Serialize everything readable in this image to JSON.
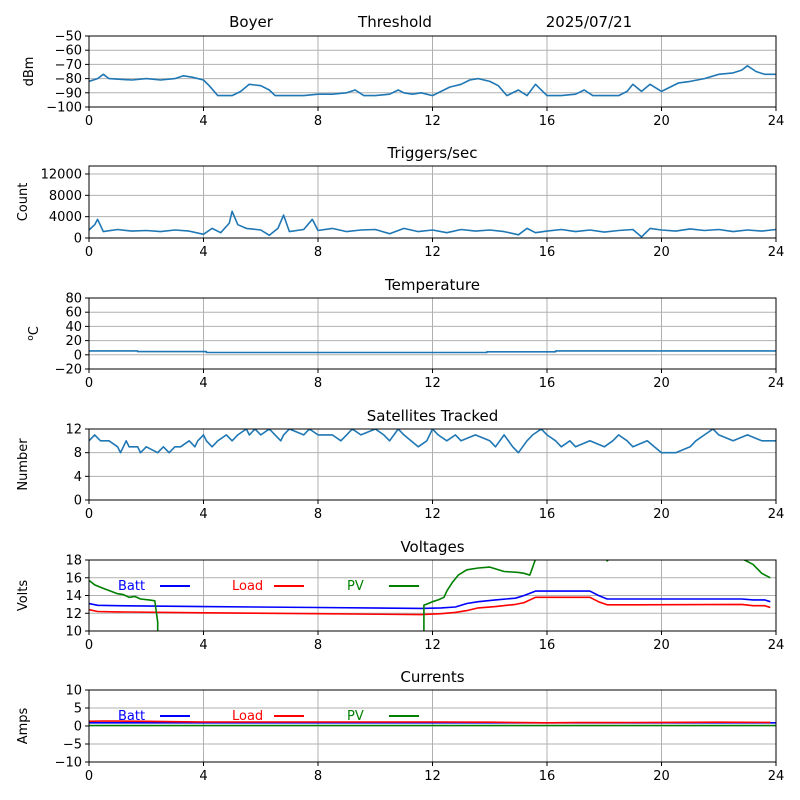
{
  "header": {
    "station": "Boyer",
    "label": "Threshold",
    "date": "2025/07/21"
  },
  "colors": {
    "series_default": "#1f77b4",
    "grid": "#b0b0b0",
    "batt": "#0000ff",
    "load": "#ff0000",
    "pv": "#008000"
  },
  "chart_data": [
    {
      "id": "threshold",
      "type": "line",
      "title": "",
      "ylabel": "dBm",
      "xlim": [
        0,
        24
      ],
      "ylim": [
        -100,
        -50
      ],
      "xticks": [
        0,
        4,
        8,
        12,
        16,
        20,
        24
      ],
      "yticks": [
        -100,
        -90,
        -80,
        -70,
        -60,
        -50
      ],
      "ytick_labels": [
        "−100",
        "−90",
        "−80",
        "−70",
        "−60",
        "−50"
      ],
      "grid": true,
      "series": [
        {
          "color": "#1f77b4",
          "x": [
            0,
            0.3,
            0.5,
            0.7,
            1.5,
            2.0,
            2.5,
            3.0,
            3.3,
            3.6,
            4.0,
            4.2,
            4.5,
            5.0,
            5.3,
            5.6,
            6.0,
            6.3,
            6.5,
            7.0,
            7.5,
            8.0,
            8.5,
            9.0,
            9.3,
            9.6,
            10.0,
            10.5,
            10.8,
            11.0,
            11.3,
            11.6,
            12.0,
            12.3,
            12.6,
            13.0,
            13.3,
            13.6,
            14.0,
            14.3,
            14.6,
            15.0,
            15.3,
            15.6,
            16.0,
            16.5,
            17.0,
            17.3,
            17.6,
            18.0,
            18.5,
            18.8,
            19.0,
            19.3,
            19.6,
            20.0,
            20.3,
            20.6,
            21.0,
            21.5,
            22.0,
            22.5,
            22.8,
            23.0,
            23.3,
            23.6,
            24.0
          ],
          "y": [
            -82,
            -80,
            -77,
            -80,
            -81,
            -80,
            -81,
            -80,
            -78,
            -79,
            -81,
            -85,
            -92,
            -92,
            -89,
            -84,
            -85,
            -88,
            -92,
            -92,
            -92,
            -91,
            -91,
            -90,
            -88,
            -92,
            -92,
            -91,
            -88,
            -90,
            -91,
            -90,
            -92,
            -89,
            -86,
            -84,
            -81,
            -80,
            -82,
            -85,
            -92,
            -88,
            -92,
            -84,
            -92,
            -92,
            -91,
            -88,
            -92,
            -92,
            -92,
            -89,
            -84,
            -89,
            -84,
            -89,
            -86,
            -83,
            -82,
            -80,
            -77,
            -76,
            -74,
            -71,
            -75,
            -77,
            -77
          ]
        }
      ]
    },
    {
      "id": "triggers",
      "type": "line",
      "title": "Triggers/sec",
      "ylabel": "Count",
      "xlim": [
        0,
        24
      ],
      "ylim": [
        0,
        13500
      ],
      "xticks": [
        0,
        4,
        8,
        12,
        16,
        20,
        24
      ],
      "yticks": [
        0,
        4000,
        8000,
        12000
      ],
      "ytick_labels": [
        "0",
        "4000",
        "8000",
        "12000"
      ],
      "grid": true,
      "series": [
        {
          "color": "#1f77b4",
          "x": [
            0,
            0.2,
            0.3,
            0.5,
            1.0,
            1.5,
            2.0,
            2.5,
            3.0,
            3.5,
            4.0,
            4.3,
            4.6,
            4.9,
            5.0,
            5.2,
            5.5,
            6.0,
            6.3,
            6.6,
            6.8,
            7.0,
            7.5,
            7.8,
            8.0,
            8.5,
            9.0,
            9.5,
            10.0,
            10.5,
            11.0,
            11.5,
            12.0,
            12.5,
            13.0,
            13.5,
            14.0,
            14.5,
            15.0,
            15.3,
            15.6,
            16.0,
            16.5,
            17.0,
            17.5,
            18.0,
            18.5,
            19.0,
            19.3,
            19.6,
            20.0,
            20.5,
            21.0,
            21.5,
            22.0,
            22.5,
            23.0,
            23.5,
            24.0
          ],
          "y": [
            1500,
            2500,
            3500,
            1200,
            1600,
            1300,
            1400,
            1200,
            1500,
            1300,
            700,
            1800,
            1000,
            2800,
            5000,
            2500,
            1800,
            1500,
            500,
            1800,
            4300,
            1200,
            1600,
            3500,
            1400,
            1800,
            1200,
            1500,
            1600,
            800,
            1800,
            1200,
            1500,
            1000,
            1600,
            1300,
            1500,
            1200,
            600,
            1800,
            1000,
            1300,
            1600,
            1200,
            1500,
            1100,
            1400,
            1600,
            200,
            1800,
            1500,
            1300,
            1700,
            1400,
            1600,
            1200,
            1500,
            1300,
            1600
          ]
        }
      ]
    },
    {
      "id": "temperature",
      "type": "line",
      "title": "Temperature",
      "ylabel": "°C",
      "ylabel_parts": [
        "o",
        "C"
      ],
      "xlim": [
        0,
        24
      ],
      "ylim": [
        -20,
        80
      ],
      "xticks": [
        0,
        4,
        8,
        12,
        16,
        20,
        24
      ],
      "yticks": [
        -20,
        0,
        20,
        40,
        60,
        80
      ],
      "ytick_labels": [
        "−20",
        "0",
        "20",
        "40",
        "60",
        "80"
      ],
      "grid": true,
      "series": [
        {
          "color": "#1f77b4",
          "x": [
            0,
            1.7,
            1.7,
            4.1,
            4.1,
            13.9,
            13.9,
            16.3,
            16.3,
            24
          ],
          "y": [
            5.5,
            5.5,
            4.5,
            4.5,
            3.2,
            3.2,
            4.2,
            4.2,
            5.5,
            5.5
          ]
        }
      ]
    },
    {
      "id": "satellites",
      "type": "line",
      "title": "Satellites Tracked",
      "ylabel": "Number",
      "xlim": [
        0,
        24
      ],
      "ylim": [
        0,
        12
      ],
      "xticks": [
        0,
        4,
        8,
        12,
        16,
        20,
        24
      ],
      "yticks": [
        0,
        4,
        8,
        12
      ],
      "ytick_labels": [
        "0",
        "4",
        "8",
        "12"
      ],
      "grid": true,
      "series": [
        {
          "color": "#1f77b4",
          "x": [
            0,
            0.2,
            0.4,
            0.7,
            1.0,
            1.1,
            1.3,
            1.4,
            1.7,
            1.8,
            2.0,
            2.4,
            2.6,
            2.8,
            3.0,
            3.2,
            3.5,
            3.7,
            3.8,
            4.0,
            4.1,
            4.3,
            4.5,
            4.8,
            5.0,
            5.2,
            5.5,
            5.6,
            5.8,
            6.0,
            6.3,
            6.5,
            6.7,
            6.8,
            7.0,
            7.5,
            7.7,
            8.0,
            8.5,
            8.8,
            9.0,
            9.2,
            9.5,
            10.0,
            10.3,
            10.5,
            10.8,
            11.0,
            11.5,
            11.8,
            12.0,
            12.2,
            12.5,
            12.8,
            13.0,
            13.5,
            14.0,
            14.2,
            14.5,
            14.8,
            15.0,
            15.3,
            15.5,
            15.8,
            16.0,
            16.3,
            16.5,
            16.8,
            17.0,
            17.5,
            18.0,
            18.3,
            18.5,
            18.8,
            19.0,
            19.5,
            20.0,
            20.5,
            21.0,
            21.2,
            21.5,
            21.8,
            22.0,
            22.5,
            23.0,
            23.5,
            24.0
          ],
          "y": [
            10,
            11,
            10,
            10,
            9,
            8,
            10,
            9,
            9,
            8,
            9,
            8,
            9,
            8,
            9,
            9,
            10,
            9,
            10,
            11,
            10,
            9,
            10,
            11,
            10,
            11,
            12,
            11,
            12,
            11,
            12,
            11,
            10,
            11,
            12,
            11,
            12,
            11,
            11,
            10,
            11,
            12,
            11,
            12,
            11,
            10,
            12,
            11,
            9,
            10,
            12,
            11,
            10,
            11,
            10,
            11,
            10,
            9,
            11,
            9,
            8,
            10,
            11,
            12,
            11,
            10,
            9,
            10,
            9,
            10,
            9,
            10,
            11,
            10,
            9,
            10,
            8,
            8,
            9,
            10,
            11,
            12,
            11,
            10,
            11,
            10,
            10
          ]
        }
      ]
    },
    {
      "id": "voltages",
      "type": "line",
      "title": "Voltages",
      "ylabel": "Volts",
      "xlim": [
        0,
        24
      ],
      "ylim": [
        10,
        18
      ],
      "xticks": [
        0,
        4,
        8,
        12,
        16,
        20,
        24
      ],
      "yticks": [
        10,
        12,
        14,
        16,
        18
      ],
      "ytick_labels": [
        "10",
        "12",
        "14",
        "16",
        "18"
      ],
      "grid": true,
      "legend": [
        "Batt",
        "Load",
        "PV"
      ],
      "series": [
        {
          "name": "Batt",
          "color": "#0000ff",
          "x": [
            0,
            0.3,
            1,
            4,
            8,
            11.6,
            12.3,
            12.8,
            13.2,
            13.6,
            14.2,
            14.9,
            15.2,
            15.6,
            16.3,
            17.5,
            17.8,
            18.1,
            19,
            22.8,
            23.2,
            23.6,
            23.8
          ],
          "y": [
            13.1,
            12.9,
            12.85,
            12.75,
            12.65,
            12.55,
            12.6,
            12.7,
            13.1,
            13.3,
            13.5,
            13.7,
            14.0,
            14.5,
            14.5,
            14.5,
            14.0,
            13.6,
            13.6,
            13.6,
            13.5,
            13.5,
            13.3
          ]
        },
        {
          "name": "Load",
          "color": "#ff0000",
          "x": [
            0,
            0.3,
            1,
            4,
            8,
            11.6,
            12.3,
            12.8,
            13.2,
            13.6,
            14.2,
            14.9,
            15.2,
            15.6,
            16.3,
            17.5,
            17.8,
            18.1,
            19,
            22.8,
            23.2,
            23.6,
            23.8
          ],
          "y": [
            12.4,
            12.2,
            12.15,
            12.05,
            11.95,
            11.85,
            11.95,
            12.1,
            12.3,
            12.6,
            12.75,
            13.0,
            13.2,
            13.8,
            13.8,
            13.8,
            13.3,
            12.95,
            12.95,
            13.0,
            12.85,
            12.85,
            12.65
          ]
        },
        {
          "name": "PV",
          "color": "#008000",
          "x": [
            0,
            0.2,
            0.5,
            1.0,
            1.2,
            1.4,
            1.6,
            1.8,
            2.1,
            2.3,
            2.4,
            2.4,
            11.7,
            11.7,
            12.0,
            12.2,
            12.4,
            12.5,
            12.7,
            12.9,
            13.2,
            13.6,
            14.0,
            14.5,
            15.0,
            15.2,
            15.4,
            15.5,
            15.6,
            15.9,
            16.3,
            17.0,
            17.5,
            18.0,
            18.1,
            18.3,
            18.5,
            22.6,
            22.9,
            23.2,
            23.5,
            23.8
          ],
          "y": [
            15.7,
            15.2,
            14.8,
            14.2,
            14.1,
            13.8,
            13.9,
            13.6,
            13.5,
            13.4,
            11.0,
            9.0,
            9.0,
            12.9,
            13.3,
            13.5,
            13.8,
            14.5,
            15.5,
            16.3,
            16.9,
            17.1,
            17.2,
            16.7,
            16.6,
            16.5,
            16.3,
            17.2,
            18.1,
            18.5,
            18.5,
            18.5,
            18.5,
            18.5,
            17.9,
            18.5,
            18.5,
            18.5,
            18.0,
            17.5,
            16.5,
            16.0
          ]
        }
      ]
    },
    {
      "id": "currents",
      "type": "line",
      "title": "Currents",
      "ylabel": "Amps",
      "xlim": [
        0,
        24
      ],
      "ylim": [
        -10,
        10
      ],
      "xticks": [
        0,
        4,
        8,
        12,
        16,
        20,
        24
      ],
      "yticks": [
        -10,
        -5,
        0,
        5,
        10
      ],
      "ytick_labels": [
        "−10",
        "−5",
        "0",
        "5",
        "10"
      ],
      "grid": true,
      "legend": [
        "Batt",
        "Load",
        "PV"
      ],
      "series": [
        {
          "name": "Batt",
          "color": "#0000ff",
          "x": [
            0,
            24
          ],
          "y": [
            0.9,
            0.9
          ]
        },
        {
          "name": "Load",
          "color": "#ff0000",
          "x": [
            0,
            0.5,
            1,
            2,
            3,
            4,
            6,
            8,
            10,
            12,
            14,
            16,
            17,
            18,
            20,
            22,
            23.8
          ],
          "y": [
            1.3,
            1.4,
            1.35,
            1.3,
            1.2,
            1.1,
            1.1,
            1.1,
            1.1,
            1.1,
            1.05,
            0.9,
            0.95,
            0.95,
            1.0,
            1.05,
            1.0
          ]
        },
        {
          "name": "PV",
          "color": "#008000",
          "x": [
            0,
            24
          ],
          "y": [
            0.15,
            0.15
          ]
        }
      ]
    }
  ]
}
